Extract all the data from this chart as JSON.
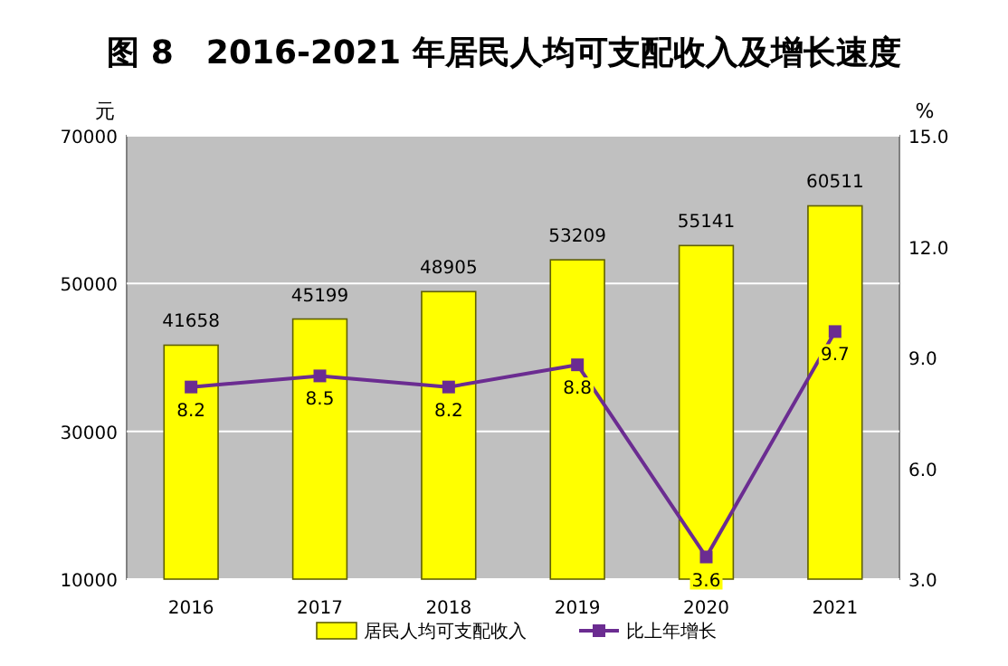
{
  "chart_data": {
    "type": "bar",
    "title": "图 8　2016-2021 年居民人均可支配收入及增长速度",
    "ylabel": "元",
    "y2label": "%",
    "categories": [
      "2016",
      "2017",
      "2018",
      "2019",
      "2020",
      "2021"
    ],
    "series": [
      {
        "name": "居民人均可支配收入",
        "color": "#ffff00",
        "values": [
          41658,
          45199,
          48905,
          53209,
          55141,
          60511
        ]
      },
      {
        "name": "比上年增长",
        "type": "line",
        "axis": "y2",
        "color": "#6b2c91",
        "marker": "square",
        "values": [
          8.2,
          8.5,
          8.2,
          8.8,
          3.6,
          9.7
        ]
      }
    ],
    "ylim": [
      10000,
      70000
    ],
    "yticks": [
      10000,
      30000,
      50000,
      70000
    ],
    "y2lim": [
      3,
      15
    ],
    "y2ticks": [
      {
        "value": 3,
        "label": "3.0"
      },
      {
        "value": 6,
        "label": "6.0"
      },
      {
        "value": 9,
        "label": "9.0"
      },
      {
        "value": 12,
        "label": "12.0"
      },
      {
        "value": 15,
        "label": "15.0"
      }
    ],
    "grid": "y",
    "legend": "bottom",
    "data_labels": true
  }
}
